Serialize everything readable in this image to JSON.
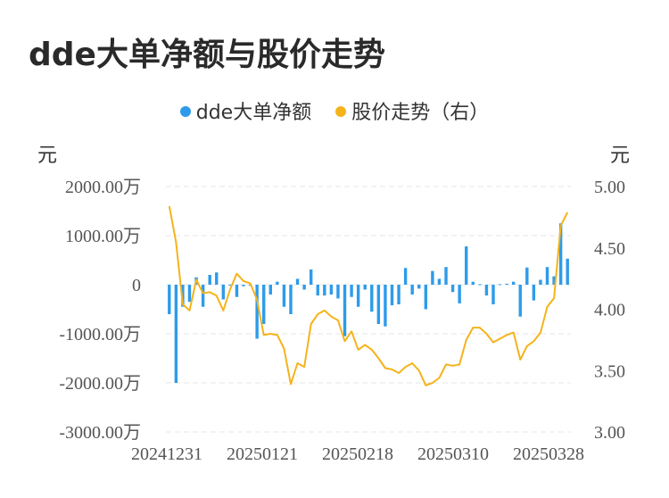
{
  "title": "dde大单净额与股价走势",
  "legend": {
    "dde_label": "dde大单净额",
    "price_label": "股价走势（右）"
  },
  "units": {
    "left": "元",
    "right": "元"
  },
  "colors": {
    "bar": "#2e9bea",
    "line": "#f5b31b",
    "grid": "#e6e6e6"
  },
  "chart_data": {
    "type": "bar+line",
    "x_tick_labels": [
      "20241231",
      "20250121",
      "20250218",
      "20250310",
      "20250328"
    ],
    "left_axis": {
      "ticks": [
        2000,
        1000,
        0,
        -1000,
        -2000,
        -3000
      ],
      "tick_labels": [
        "2000.00万",
        "1000.00万",
        "0",
        "-1000.00万",
        "-2000.00万",
        "-3000.00万"
      ],
      "ylim": [
        -3000,
        2000
      ]
    },
    "right_axis": {
      "ticks": [
        5.0,
        4.5,
        4.0,
        3.5,
        3.0
      ],
      "tick_labels": [
        "5.00",
        "4.50",
        "4.00",
        "3.50",
        "3.00"
      ],
      "ylim": [
        3.0,
        5.0
      ]
    },
    "series": [
      {
        "name": "dde大单净额",
        "type": "bar",
        "axis": "left",
        "values": [
          -600,
          -2000,
          -450,
          -350,
          150,
          -450,
          200,
          250,
          -300,
          -10,
          -250,
          -30,
          -10,
          -1100,
          -800,
          -200,
          60,
          -450,
          -600,
          120,
          -100,
          310,
          -220,
          -220,
          -200,
          -280,
          -1050,
          -250,
          -450,
          -100,
          -550,
          -800,
          -850,
          -420,
          -400,
          340,
          -200,
          -80,
          -500,
          280,
          120,
          360,
          -150,
          -380,
          780,
          60,
          10,
          -220,
          -400,
          10,
          20,
          60,
          -650,
          350,
          -320,
          100,
          360,
          170,
          1250,
          530
        ]
      },
      {
        "name": "股价走势（右）",
        "type": "line",
        "axis": "right",
        "values": [
          4.84,
          4.55,
          4.04,
          3.99,
          4.24,
          4.13,
          4.14,
          4.11,
          3.99,
          4.16,
          4.29,
          4.23,
          4.21,
          4.08,
          3.79,
          3.8,
          3.79,
          3.68,
          3.39,
          3.56,
          3.53,
          3.88,
          3.96,
          3.99,
          3.94,
          3.91,
          3.74,
          3.82,
          3.67,
          3.71,
          3.67,
          3.6,
          3.52,
          3.51,
          3.48,
          3.53,
          3.56,
          3.5,
          3.38,
          3.4,
          3.44,
          3.55,
          3.54,
          3.55,
          3.75,
          3.85,
          3.85,
          3.8,
          3.73,
          3.76,
          3.79,
          3.81,
          3.59,
          3.7,
          3.74,
          3.81,
          4.02,
          4.09,
          4.68,
          4.79
        ]
      }
    ],
    "grid": true,
    "legend_position": "top-center"
  }
}
